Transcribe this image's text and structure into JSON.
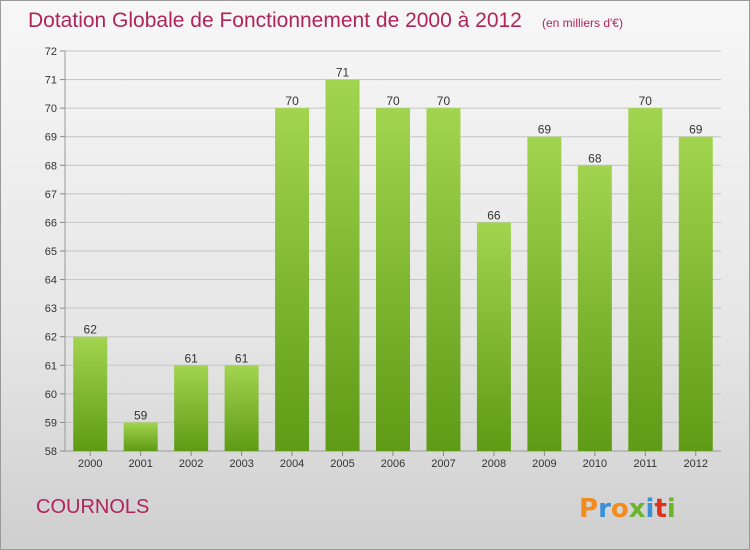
{
  "header": {
    "title": "Dotation Globale de Fonctionnement de 2000 à 2012",
    "unit": "(en milliers d'€)"
  },
  "commune": "COURNOLS",
  "brand": {
    "name": "Proxiti",
    "colors": [
      "#f28c1e",
      "#3a8fd6",
      "#f28c1e",
      "#6cb52d",
      "#3a8fd6",
      "#e0301e",
      "#6cb52d"
    ]
  },
  "colors": {
    "bar_light": "#a2d44f",
    "bar_dark": "#5f9b16",
    "title": "#b0245a",
    "grid": "#c4c4c4",
    "text": "#333333"
  },
  "chart_data": {
    "type": "bar",
    "categories": [
      "2000",
      "2001",
      "2002",
      "2003",
      "2004",
      "2005",
      "2006",
      "2007",
      "2008",
      "2009",
      "2010",
      "2011",
      "2012"
    ],
    "values": [
      62,
      59,
      61,
      61,
      70,
      71,
      70,
      70,
      66,
      69,
      68,
      70,
      69
    ],
    "yticks": [
      58,
      59,
      60,
      61,
      62,
      63,
      64,
      65,
      66,
      67,
      68,
      69,
      70,
      71,
      72
    ],
    "ylim": [
      58,
      72
    ],
    "grid": true,
    "title": "Dotation Globale de Fonctionnement de 2000 à 2012",
    "xlabel": "",
    "ylabel": ""
  }
}
